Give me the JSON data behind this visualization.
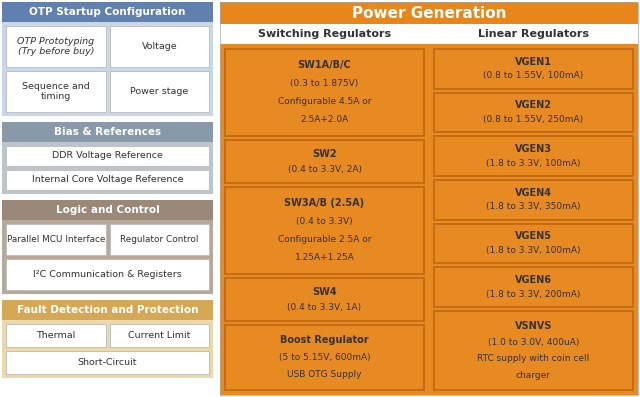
{
  "title_power": "Power Generation",
  "title_otp": "OTP Startup Configuration",
  "title_bias": "Bias & References",
  "title_logic": "Logic and Control",
  "title_fault": "Fault Detection and Protection",
  "otp_header_color": "#6080b0",
  "bias_header_color": "#8899aa",
  "logic_header_color": "#9a8878",
  "fault_header_color": "#d4a855",
  "power_header_color": "#e8861a",
  "otp_bg": "#c8d8ea",
  "bias_bg": "#bbc5ce",
  "logic_bg": "#b8a898",
  "fault_bg": "#ecd8a8",
  "sw_bg": "#e88a22",
  "sw_border": "#c06810",
  "white_box_border": "#bbbbbb",
  "switching_title": "Switching Regulators",
  "linear_title": "Linear Regulators",
  "switching_boxes": [
    {
      "bold": "SW1A/B/C",
      "text": "(0.3 to 1.875V)\nConfigurable 4.5A or\n2.5A+2.0A"
    },
    {
      "bold": "SW2",
      "text": "(0.4 to 3.3V, 2A)"
    },
    {
      "bold": "SW3A/B (2.5A)",
      "text": "(0.4 to 3.3V)\nConfigurable 2.5A or\n1.25A+1.25A"
    },
    {
      "bold": "SW4",
      "text": "(0.4 to 3.3V, 1A)"
    },
    {
      "bold": "Boost Regulator",
      "text": "(5 to 5.15V, 600mA)\nUSB OTG Supply"
    }
  ],
  "linear_boxes": [
    {
      "bold": "VGEN1",
      "text": "(0.8 to 1.55V, 100mA)"
    },
    {
      "bold": "VGEN2",
      "text": "(0.8 to 1.55V, 250mA)"
    },
    {
      "bold": "VGEN3",
      "text": "(1.8 to 3.3V, 100mA)"
    },
    {
      "bold": "VGEN4",
      "text": "(1.8 to 3.3V, 350mA)"
    },
    {
      "bold": "VGEN5",
      "text": "(1.8 to 3.3V, 100mA)"
    },
    {
      "bold": "VGEN6",
      "text": "(1.8 to 3.3V, 200mA)"
    },
    {
      "bold": "VSNVS",
      "text": "(1.0 to 3.0V, 400uA)\nRTC supply with coin cell\ncharger"
    }
  ],
  "fig_w": 6.4,
  "fig_h": 3.97,
  "dpi": 100
}
